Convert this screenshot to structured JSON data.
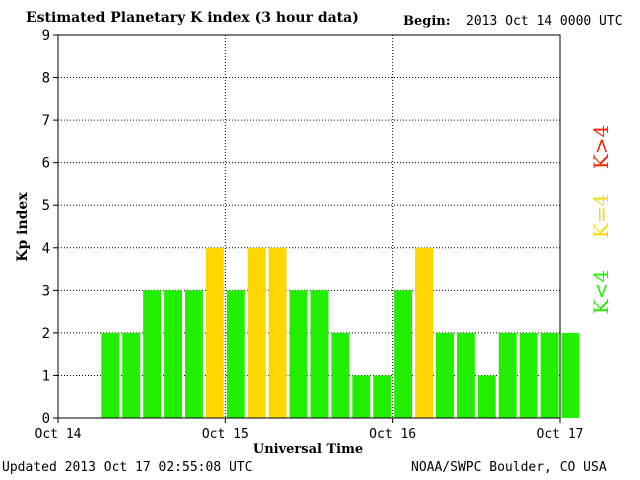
{
  "header": {
    "title": "Estimated Planetary K index (3 hour data)",
    "begin_label": "Begin:",
    "begin_value": "2013 Oct 14 0000 UTC"
  },
  "footer": {
    "updated": "Updated 2013 Oct 17 02:55:08 UTC",
    "credit": "NOAA/SWPC Boulder, CO USA"
  },
  "legend": {
    "above": "K>4",
    "equal": "K=4",
    "below": "K<4"
  },
  "colors": {
    "below": "#22ee00",
    "equal": "#ffd700",
    "above": "#ff2200"
  },
  "chart_data": {
    "type": "bar",
    "title": "Estimated Planetary K index (3 hour data)",
    "xlabel": "Universal Time",
    "ylabel": "Kp index",
    "ylim": [
      0,
      9
    ],
    "yticks": [
      "0",
      "1",
      "2",
      "3",
      "4",
      "5",
      "6",
      "7",
      "8",
      "9"
    ],
    "xticks": [
      "Oct 14",
      "Oct 15",
      "Oct 16",
      "Oct 17"
    ],
    "grid": true,
    "x_interval_hours": 3,
    "values": [
      0,
      0,
      2,
      2,
      3,
      3,
      3,
      4,
      3,
      4,
      4,
      3,
      3,
      2,
      1,
      1,
      3,
      4,
      2,
      2,
      1,
      2,
      2,
      2,
      2
    ]
  }
}
